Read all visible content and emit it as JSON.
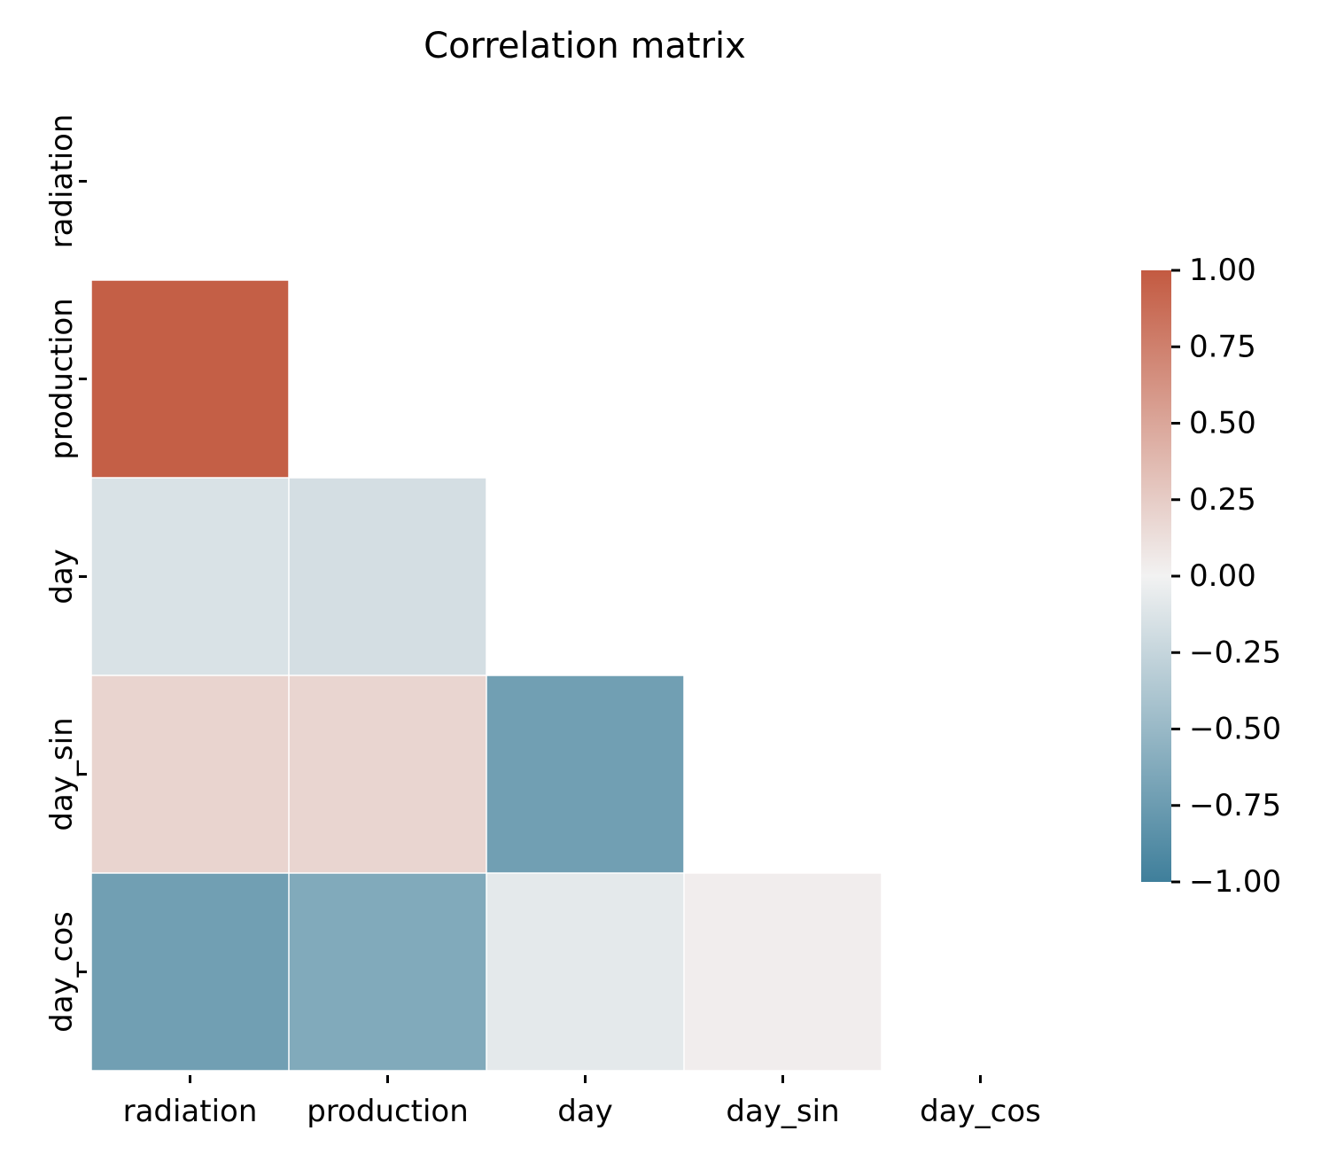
{
  "chart_data": {
    "type": "heatmap",
    "title": "Correlation matrix",
    "variables": [
      "radiation",
      "production",
      "day",
      "day_sin",
      "day_cos"
    ],
    "mask": "upper-triangle-including-diagonal",
    "matrix": [
      [
        null,
        null,
        null,
        null,
        null
      ],
      [
        0.97,
        null,
        null,
        null,
        null
      ],
      [
        -0.14,
        -0.17,
        null,
        null,
        null
      ],
      [
        0.2,
        0.19,
        -0.72,
        null,
        null
      ],
      [
        -0.72,
        -0.63,
        -0.08,
        0.03,
        null
      ]
    ],
    "colorbar": {
      "vmin": -1.0,
      "vmax": 1.0,
      "ticks": [
        "1.00",
        "0.75",
        "0.50",
        "0.25",
        "0.00",
        "−0.25",
        "−0.50",
        "−0.75",
        "−1.00"
      ],
      "tick_values": [
        1.0,
        0.75,
        0.5,
        0.25,
        0.0,
        -0.25,
        -0.5,
        -0.75,
        -1.0
      ]
    },
    "colors": {
      "negative": "#3f7f9b",
      "center": "#f2f2f2",
      "positive": "#c35a41"
    },
    "grid": false
  }
}
